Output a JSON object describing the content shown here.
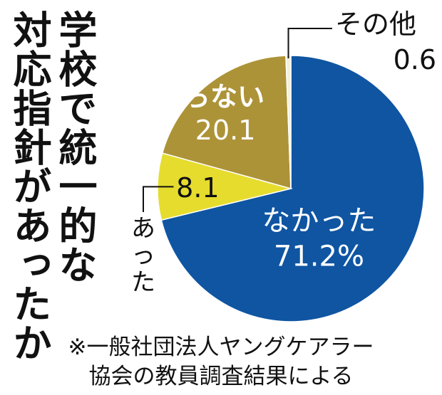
{
  "title_lines": [
    "学校で統一的な",
    "対応指針があったか"
  ],
  "note_lines": [
    "※一般社団法人ヤングケアラー",
    "協会の教員調査結果による"
  ],
  "chart_data": {
    "type": "pie",
    "unit": "%",
    "slices": [
      {
        "label": "なかった",
        "value": 71.2,
        "value_text": "71.2%",
        "color": "#0f55a2",
        "text_color": "#ffffff"
      },
      {
        "label": "あった",
        "value": 8.1,
        "value_text": "8.1",
        "color": "#e6dc2e",
        "text_color": "#111111"
      },
      {
        "label": "分からない",
        "value": 20.1,
        "value_text": "20.1",
        "color": "#ad9338",
        "text_color": "#ffffff"
      },
      {
        "label": "その他",
        "value": 0.6,
        "value_text": "0.6",
        "color": "#f5f0d8",
        "text_color": "#111111"
      }
    ]
  }
}
